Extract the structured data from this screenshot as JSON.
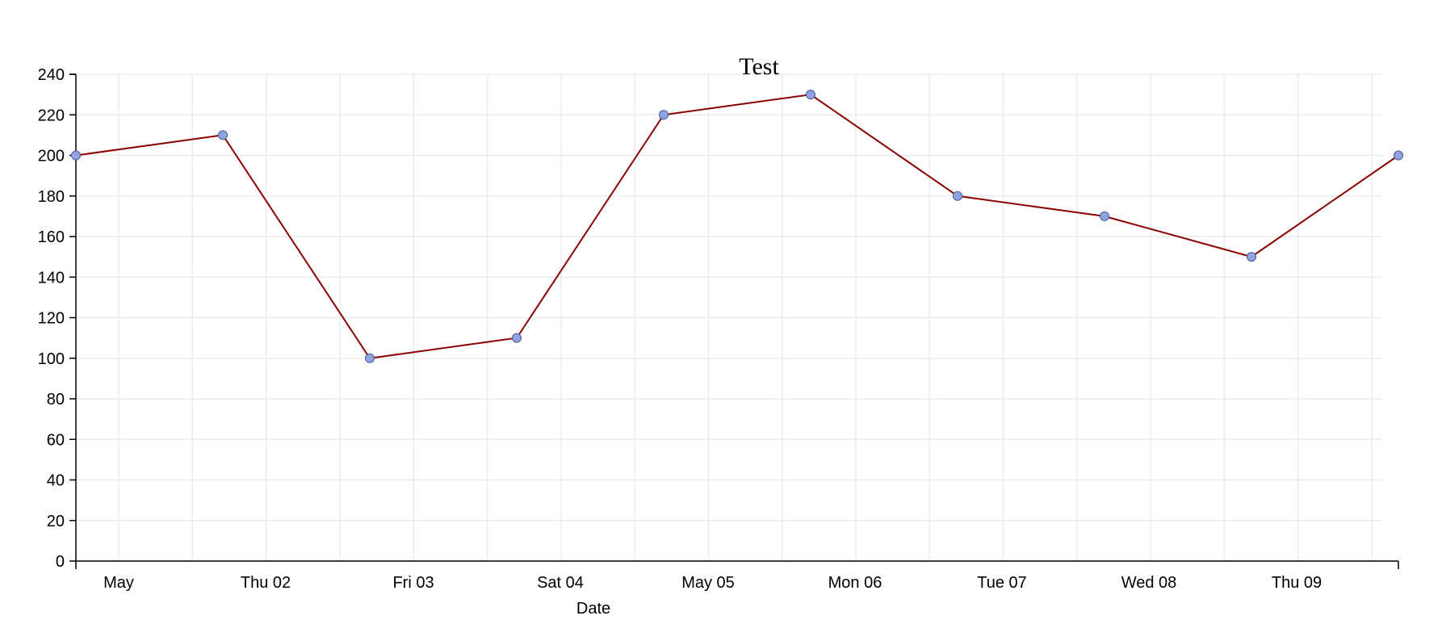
{
  "chart_data": {
    "type": "line",
    "title": "Test",
    "xlabel": "Date",
    "ylabel": "",
    "x_axis_type": "time",
    "x": [
      "2014-05-01",
      "2014-05-02",
      "2014-05-03",
      "2014-05-04",
      "2014-05-05",
      "2014-05-06",
      "2014-05-07",
      "2014-05-08",
      "2014-05-09",
      "2014-05-10"
    ],
    "series": [
      {
        "values": [
          200,
          210,
          100,
          110,
          220,
          230,
          180,
          170,
          150,
          200
        ],
        "color": "#8b0000",
        "marker_color": "#8fa3e0"
      }
    ],
    "ylim": [
      0,
      240
    ],
    "yticks": [
      0,
      20,
      40,
      60,
      80,
      100,
      120,
      140,
      160,
      180,
      200,
      220,
      240
    ],
    "xtick_labels": [
      "May",
      "Thu 02",
      "Fri 03",
      "Sat 04",
      "May 05",
      "Mon 06",
      "Tue 07",
      "Wed 08",
      "Thu 09"
    ],
    "grid": true
  }
}
